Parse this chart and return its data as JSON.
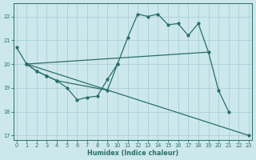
{
  "xlabel": "Humidex (Indice chaleur)",
  "bg_color": "#cce8ec",
  "grid_color": "#aacfd6",
  "line_color": "#2a6e68",
  "xlim": [
    -0.3,
    23.3
  ],
  "ylim": [
    16.8,
    22.55
  ],
  "yticks": [
    17,
    18,
    19,
    20,
    21,
    22
  ],
  "xticks": [
    0,
    1,
    2,
    3,
    4,
    5,
    6,
    7,
    8,
    9,
    10,
    11,
    12,
    13,
    14,
    15,
    16,
    17,
    18,
    19,
    20,
    21,
    22,
    23
  ],
  "line_main": {
    "x": [
      0,
      1,
      2,
      3,
      4,
      5,
      6,
      7,
      8,
      9,
      10,
      11,
      12,
      13,
      14,
      15,
      16,
      17,
      18,
      19,
      20,
      21
    ],
    "y": [
      20.7,
      20.0,
      19.7,
      19.5,
      19.3,
      19.0,
      18.5,
      18.6,
      18.65,
      19.35,
      20.0,
      21.1,
      22.1,
      22.0,
      22.1,
      21.65,
      21.7,
      21.2,
      21.7,
      20.5,
      18.9,
      18.0
    ]
  },
  "line_upper_diag": {
    "x": [
      1,
      19
    ],
    "y": [
      20.0,
      20.5
    ]
  },
  "line_lower_diag": {
    "x": [
      1,
      23
    ],
    "y": [
      20.0,
      17.0
    ]
  },
  "line_inner": {
    "comment": "inner small shape: from x=1,y=20 down to 2,19.7 to 3,19.5 to 4,19.3 to 9,18.9 to 10,20.0",
    "x": [
      1,
      2,
      3,
      4,
      9,
      10
    ],
    "y": [
      20.0,
      19.7,
      19.5,
      19.3,
      18.9,
      20.0
    ]
  },
  "lw": 0.9,
  "ms": 2.0
}
